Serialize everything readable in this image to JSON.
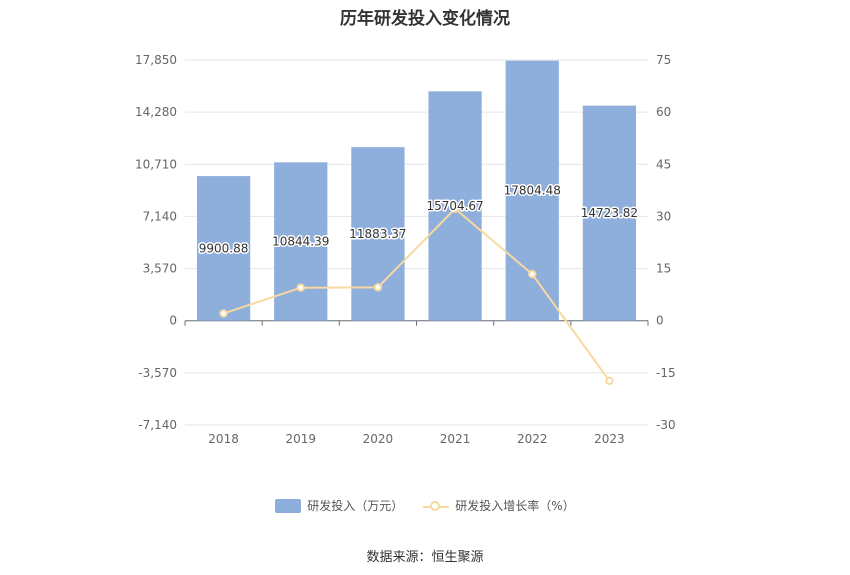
{
  "chart_data": {
    "type": "bar",
    "title": "历年研发投入变化情况",
    "categories": [
      "2018",
      "2019",
      "2020",
      "2021",
      "2022",
      "2023"
    ],
    "series": [
      {
        "name": "研发投入（万元）",
        "type": "bar",
        "axis": "left",
        "color": "#8eaedb",
        "values": [
          9900.88,
          10844.39,
          11883.37,
          15704.67,
          17804.48,
          14723.82
        ],
        "labels": [
          "9900.88",
          "10844.39",
          "11883.37",
          "15704.67",
          "17804.48",
          "14723.82"
        ]
      },
      {
        "name": "研发投入增长率（%）",
        "type": "line",
        "axis": "right",
        "color": "#f8d9a0",
        "values": [
          2.1,
          9.5,
          9.6,
          32.2,
          13.4,
          -17.3
        ]
      }
    ],
    "y_left": {
      "ylim": [
        -7140,
        17850
      ],
      "ticks": [
        "17,850",
        "14,280",
        "10,710",
        "7,140",
        "3,570",
        "0",
        "-3,570",
        "-7,140"
      ]
    },
    "y_right": {
      "ylim": [
        -30,
        75
      ],
      "ticks": [
        "75",
        "60",
        "45",
        "30",
        "15",
        "0",
        "-15",
        "-30"
      ]
    },
    "grid": true,
    "legend": "bottom"
  },
  "source": "数据来源：恒生聚源"
}
